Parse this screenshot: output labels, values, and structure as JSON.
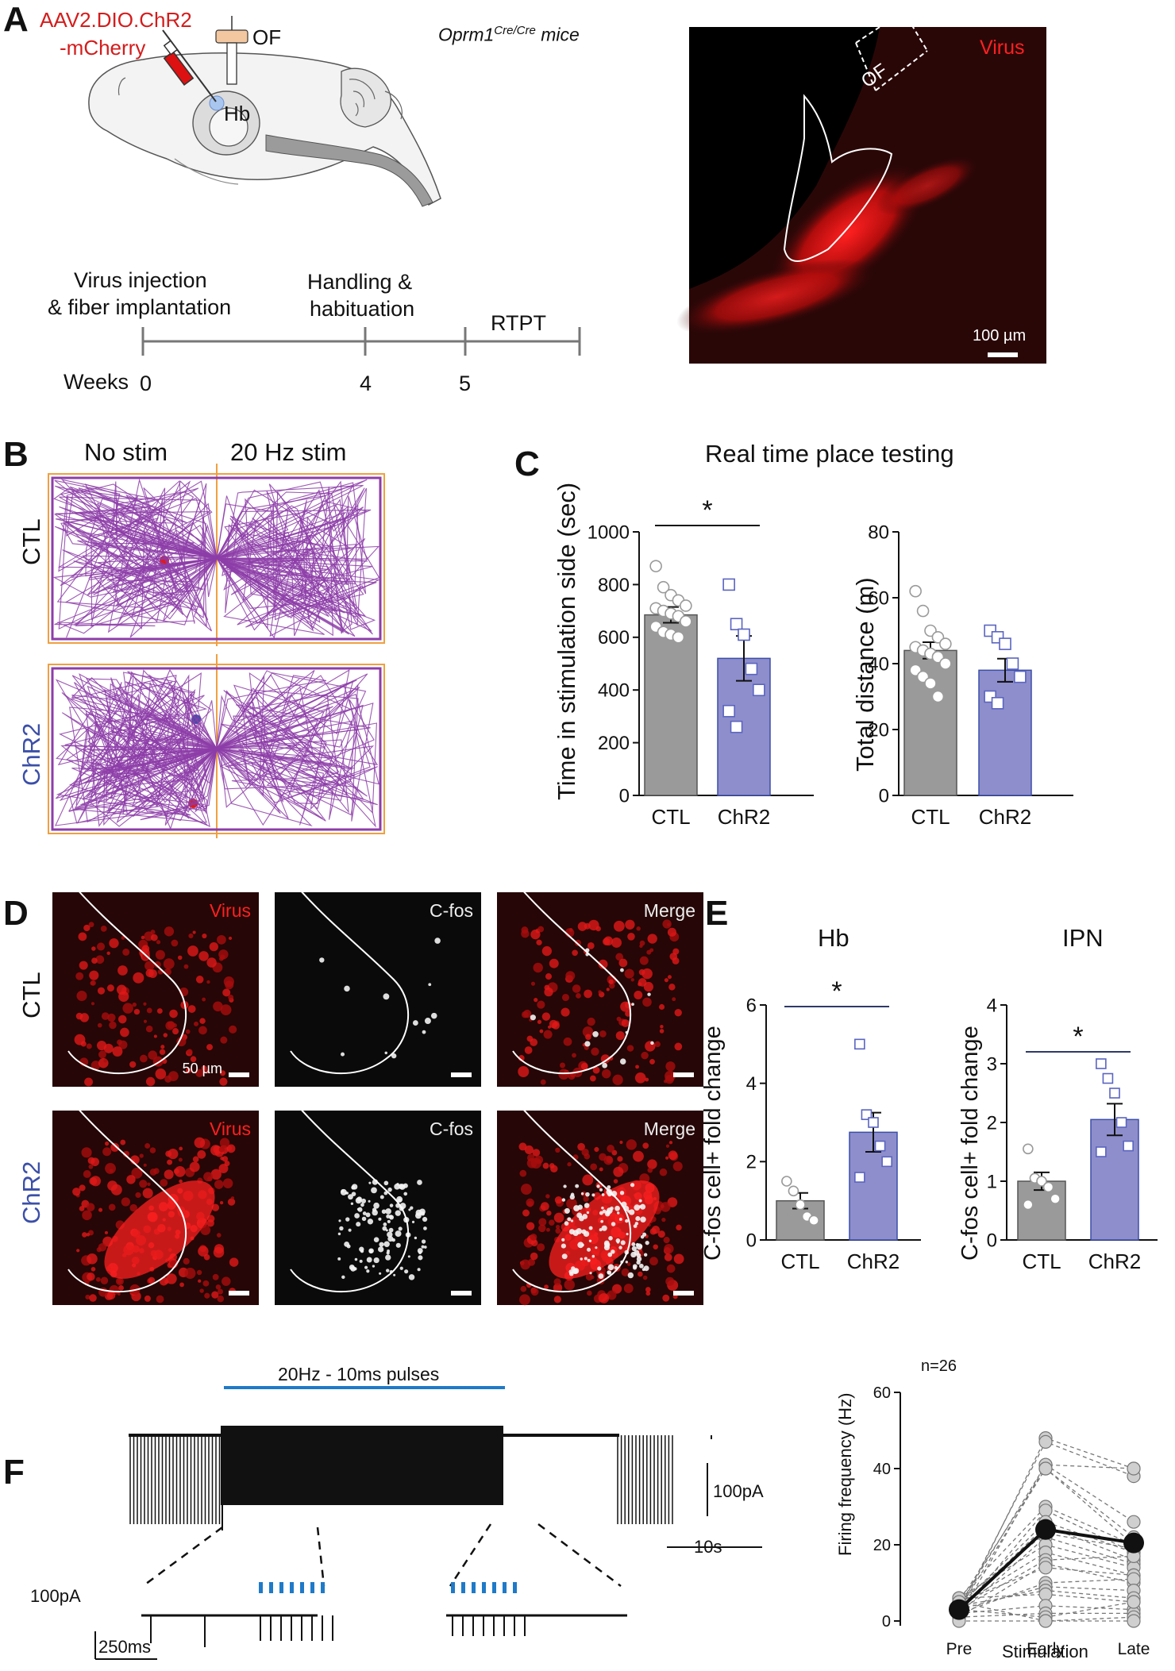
{
  "panels": {
    "A": "A",
    "B": "B",
    "C": "C",
    "D": "D",
    "E": "E",
    "F": "F"
  },
  "panel_a": {
    "virus_line1": "AAV2.DIO.ChR2",
    "virus_line2": "-mCherry",
    "of": "OF",
    "hb": "Hb",
    "mouse": "Oprm1",
    "mouse_sup": "Cre/Cre",
    "mouse_suffix": " mice",
    "timeline": {
      "e1a": "Virus injection",
      "e1b": "& fiber implantation",
      "e2a": "Handling &",
      "e2b": "habituation",
      "e3": "RTPT",
      "weeks": "Weeks",
      "ticks": [
        "0",
        "4",
        "5"
      ]
    },
    "image": {
      "label": "Virus",
      "of": "OF",
      "scale": "100 µm"
    }
  },
  "panel_b": {
    "left": "No stim",
    "right": "20 Hz stim",
    "row1": "CTL",
    "row2": "ChR2"
  },
  "panel_c": {
    "title": "Real time place testing",
    "colors": {
      "ctl": "#9a9a9a",
      "chr2": "#8e8ecc"
    }
  },
  "panel_d": {
    "cols": [
      "Virus",
      "C-fos",
      "Merge"
    ],
    "rows": [
      "CTL",
      "ChR2"
    ],
    "scale": "50 µm"
  },
  "panel_e": {
    "titles": [
      "Hb",
      "IPN"
    ]
  },
  "panel_f": {
    "stim": "20Hz - 10ms pulses",
    "scale_pa": "100pA",
    "scale_s": "10s",
    "scale_pa2": "100pA",
    "scale_ms": "250ms",
    "n": "n=26"
  },
  "chart_data": [
    {
      "type": "bar",
      "panel": "C",
      "title": "",
      "ylabel": "Time in stimulation side (sec)",
      "categories": [
        "CTL",
        "ChR2"
      ],
      "values": [
        685,
        520
      ],
      "sem": [
        30,
        85
      ],
      "ylim": [
        0,
        1000
      ],
      "yticks": [
        0,
        200,
        400,
        600,
        800,
        1000
      ],
      "significance": "*",
      "points": {
        "CTL": [
          870,
          790,
          760,
          740,
          720,
          710,
          700,
          690,
          680,
          660,
          640,
          620,
          610,
          600
        ],
        "ChR2": [
          800,
          650,
          610,
          480,
          400,
          320,
          260
        ]
      }
    },
    {
      "type": "bar",
      "panel": "C",
      "ylabel": "Total distance  (m)",
      "categories": [
        "CTL",
        "ChR2"
      ],
      "values": [
        44,
        38
      ],
      "sem": [
        2.5,
        3.5
      ],
      "ylim": [
        0,
        80
      ],
      "yticks": [
        0,
        20,
        40,
        60,
        80
      ],
      "points": {
        "CTL": [
          62,
          56,
          50,
          48,
          46,
          45,
          44,
          43,
          42,
          40,
          38,
          36,
          34,
          30
        ],
        "ChR2": [
          50,
          48,
          46,
          40,
          36,
          30,
          28
        ]
      }
    },
    {
      "type": "bar",
      "panel": "E",
      "title": "Hb",
      "ylabel": "C-fos cell+ fold change",
      "categories": [
        "CTL",
        "ChR2"
      ],
      "values": [
        1.0,
        2.75
      ],
      "sem": [
        0.2,
        0.5
      ],
      "ylim": [
        0,
        6
      ],
      "yticks": [
        0,
        2,
        4,
        6
      ],
      "significance": "*",
      "points": {
        "CTL": [
          1.5,
          1.25,
          0.9,
          0.6,
          0.5
        ],
        "ChR2": [
          5.0,
          3.2,
          3.0,
          2.4,
          2.0,
          1.6
        ]
      }
    },
    {
      "type": "bar",
      "panel": "E",
      "title": "IPN",
      "ylabel": "C-fos cell+ fold change",
      "categories": [
        "CTL",
        "ChR2"
      ],
      "values": [
        1.0,
        2.05
      ],
      "sem": [
        0.15,
        0.27
      ],
      "ylim": [
        0,
        4
      ],
      "yticks": [
        0,
        1,
        2,
        3,
        4
      ],
      "significance": "*",
      "points": {
        "CTL": [
          1.55,
          1.05,
          1.0,
          0.9,
          0.7,
          0.6
        ],
        "ChR2": [
          3.0,
          2.75,
          2.5,
          2.0,
          1.6,
          1.5
        ]
      }
    },
    {
      "type": "line",
      "panel": "F",
      "title": "n=26",
      "xlabel": "Stimulation",
      "ylabel": "Firing frequency (Hz)",
      "categories": [
        "Pre",
        "Early",
        "Late"
      ],
      "ylim": [
        0,
        60
      ],
      "yticks": [
        0,
        20,
        40,
        60
      ],
      "mean": [
        3,
        24,
        20.5
      ],
      "cells": [
        [
          2,
          48,
          40
        ],
        [
          3,
          47,
          38
        ],
        [
          4,
          41,
          26
        ],
        [
          1,
          41,
          40
        ],
        [
          5,
          40,
          22
        ],
        [
          3,
          40,
          20
        ],
        [
          6,
          30,
          20
        ],
        [
          2,
          29,
          18
        ],
        [
          4,
          26,
          18
        ],
        [
          3,
          25,
          16
        ],
        [
          5,
          23,
          19
        ],
        [
          2,
          22,
          15
        ],
        [
          6,
          20,
          14
        ],
        [
          4,
          18,
          12
        ],
        [
          3,
          16,
          17
        ],
        [
          1,
          15,
          10
        ],
        [
          5,
          14,
          12
        ],
        [
          2,
          10,
          11
        ],
        [
          3,
          9,
          8
        ],
        [
          4,
          8,
          6
        ],
        [
          6,
          7,
          5
        ],
        [
          2,
          4,
          3
        ],
        [
          1,
          2,
          2
        ],
        [
          3,
          1,
          5
        ],
        [
          5,
          0,
          1
        ],
        [
          0,
          0,
          0
        ]
      ]
    }
  ]
}
